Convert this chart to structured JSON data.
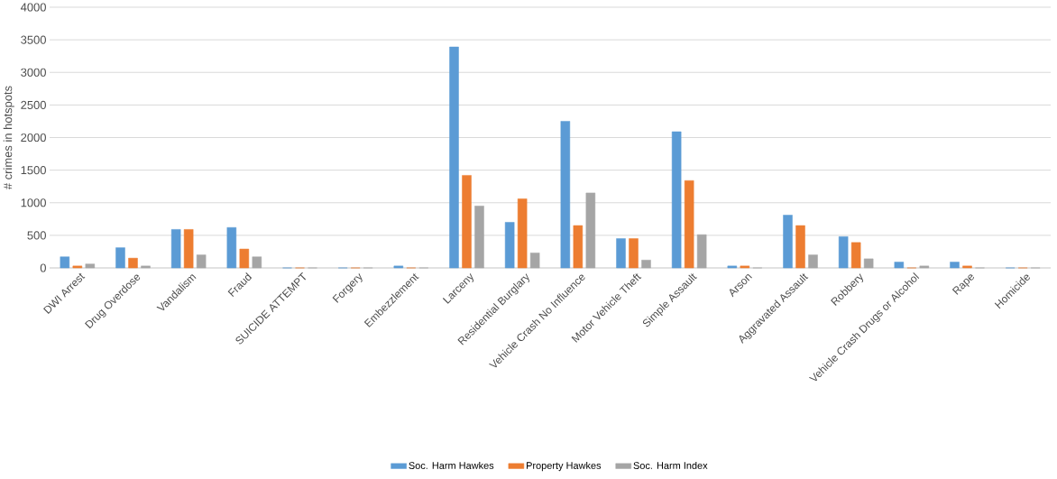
{
  "chart_data": {
    "type": "bar",
    "ylabel": "# crimes in hotspots",
    "categories": [
      "DWI Arrest",
      "Drug Overdose",
      "Vandalism",
      "Fraud",
      "SUICIDE ATTEMPT",
      "Forgery",
      "Embezzlement",
      "Larceny",
      "Residential Burglary",
      "Vehicle Crash No Influence",
      "Motor Vehicle Theft",
      "Simple Assault",
      "Arson",
      "Aggravated  Assault",
      "Robbery",
      "Vehicle Crash Drugs or Alcohol",
      "Rape",
      "Homicide"
    ],
    "series": [
      {
        "name": "Soc. Harm Hawkes",
        "color": "#5b9bd5",
        "values": [
          170,
          310,
          590,
          620,
          0,
          0,
          30,
          3390,
          700,
          2250,
          450,
          2090,
          30,
          810,
          480,
          90,
          90,
          0
        ]
      },
      {
        "name": "Property Hawkes",
        "color": "#ed7d31",
        "values": [
          30,
          150,
          590,
          290,
          0,
          0,
          0,
          1420,
          1060,
          650,
          450,
          1340,
          30,
          650,
          390,
          0,
          30,
          0
        ]
      },
      {
        "name": "Soc. Harm Index",
        "color": "#a5a5a5",
        "values": [
          60,
          30,
          200,
          170,
          0,
          0,
          0,
          950,
          230,
          1150,
          120,
          510,
          0,
          200,
          140,
          30,
          0,
          0
        ]
      }
    ],
    "ylim": [
      0,
      4000
    ],
    "yticks": [
      0,
      500,
      1000,
      1500,
      2000,
      2500,
      3000,
      3500,
      4000
    ],
    "grid": "y",
    "legend": "bottom"
  }
}
